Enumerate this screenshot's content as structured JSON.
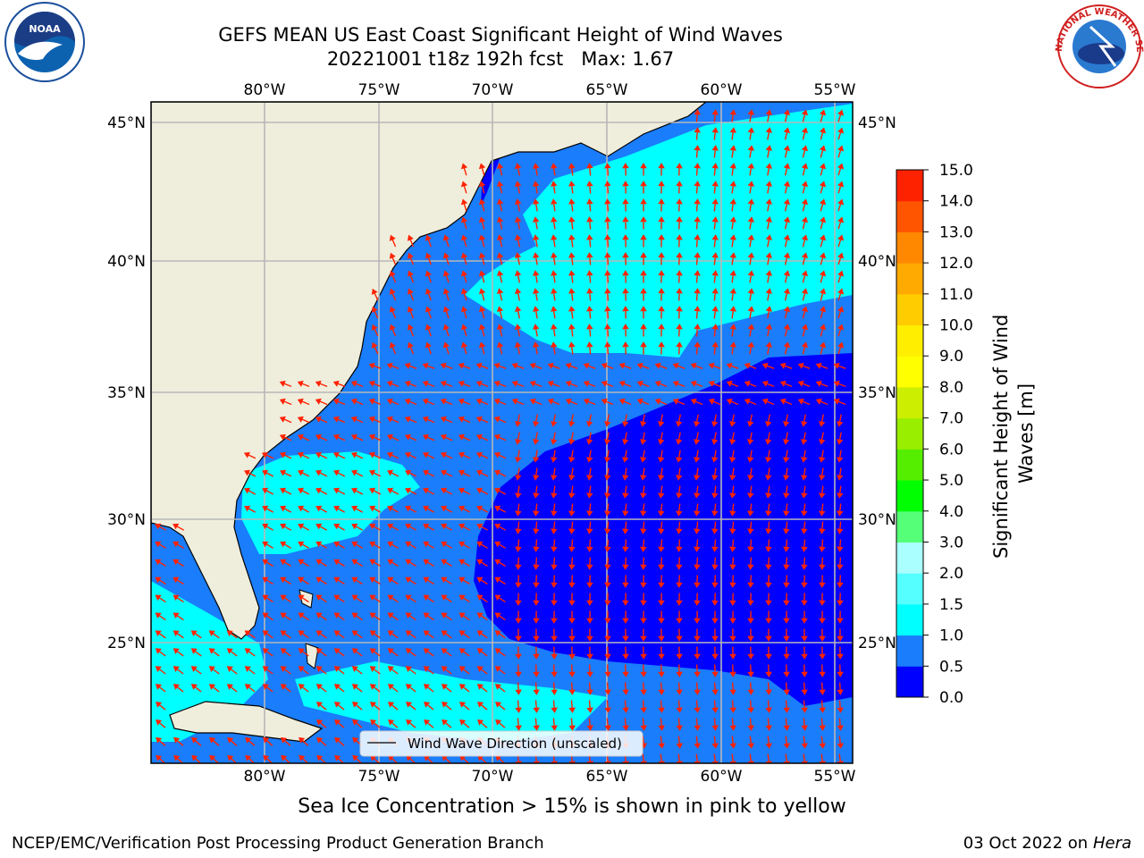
{
  "title": {
    "line1": "GEFS MEAN US East Coast Significant Height of Wind Waves",
    "line2": "20221001 t18z 192h fcst   Max: 1.67"
  },
  "map": {
    "lon_ticks": [
      "80°W",
      "75°W",
      "70°W",
      "65°W",
      "60°W",
      "55°W"
    ],
    "lat_ticks": [
      "45°N",
      "40°N",
      "35°N",
      "30°N",
      "25°N"
    ],
    "legend_label": "Wind Wave Direction (unscaled)",
    "colors": {
      "land": "#efeddc",
      "ocean_bg": "#1a7dfb",
      "arrow": "#ff2200",
      "grid": "#b8b8b8"
    }
  },
  "colorbar": {
    "label": "Significant Height of Wind Waves [m]",
    "ticks": [
      "0.0",
      "0.5",
      "1.0",
      "1.5",
      "2.0",
      "3.0",
      "4.0",
      "5.0",
      "6.0",
      "7.0",
      "8.0",
      "9.0",
      "10.0",
      "11.0",
      "12.0",
      "13.0",
      "14.0",
      "15.0"
    ],
    "colors": [
      "#0000ff",
      "#1a7dfb",
      "#00ffff",
      "#55ffff",
      "#aaffff",
      "#55ff77",
      "#00ff00",
      "#55ee00",
      "#99ee00",
      "#ccee00",
      "#ffff00",
      "#ffee00",
      "#ffcc00",
      "#ffaa00",
      "#ff8800",
      "#ff5500",
      "#ff2200"
    ]
  },
  "footer": {
    "note": "Sea Ice Concentration > 15% is shown in pink to yellow",
    "credit_left": "NCEP/EMC/Verification Post Processing Product Generation Branch",
    "credit_right_date": "03 Oct 2022 on",
    "credit_right_host": "Hera"
  },
  "logos": {
    "noaa_text": "NOAA",
    "nws_text": "NATIONAL WEATHER SERVICE"
  }
}
